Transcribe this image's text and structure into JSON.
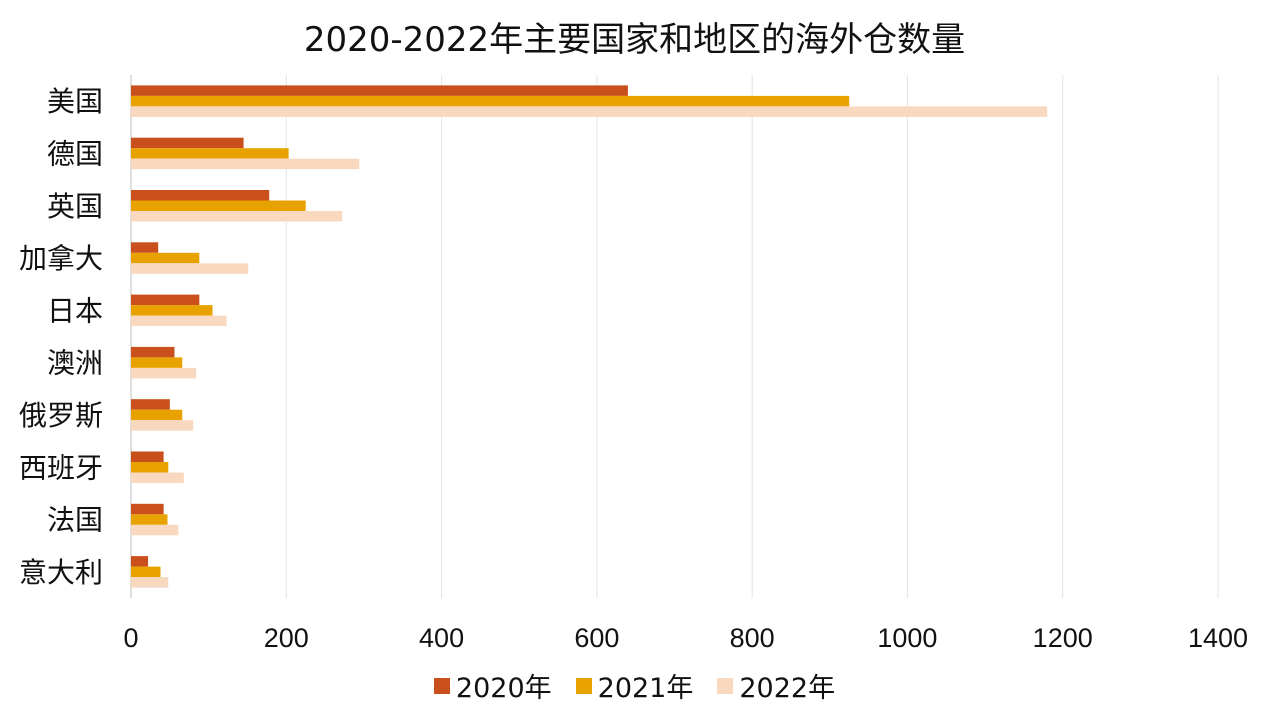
{
  "chart_data": {
    "type": "bar",
    "orientation": "horizontal",
    "title": "2020-2022年主要国家和地区的海外仓数量",
    "categories": [
      "美国",
      "德国",
      "英国",
      "加拿大",
      "日本",
      "澳洲",
      "俄罗斯",
      "西班牙",
      "法国",
      "意大利"
    ],
    "series": [
      {
        "name": "2020年",
        "color": "#C9501C",
        "values": [
          640,
          145,
          178,
          35,
          88,
          56,
          50,
          42,
          42,
          22
        ]
      },
      {
        "name": "2021年",
        "color": "#E8A200",
        "values": [
          925,
          203,
          225,
          88,
          105,
          66,
          66,
          48,
          47,
          38
        ]
      },
      {
        "name": "2022年",
        "color": "#F8D9C0",
        "values": [
          1180,
          294,
          272,
          151,
          123,
          84,
          80,
          68,
          61,
          48
        ]
      }
    ],
    "xlim": [
      0,
      1400
    ],
    "xticks": [
      0,
      200,
      400,
      600,
      800,
      1000,
      1200,
      1400
    ],
    "grid": true,
    "legend_position": "bottom"
  }
}
